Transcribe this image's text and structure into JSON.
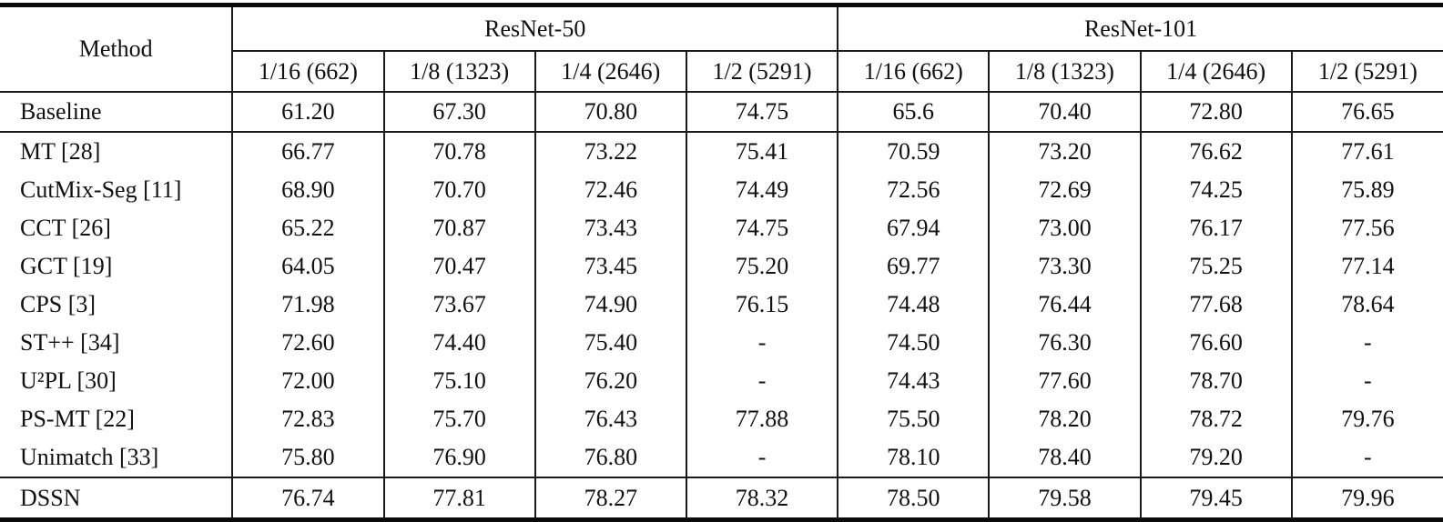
{
  "table": {
    "method_header": "Method",
    "group_headers": [
      "ResNet-50",
      "ResNet-101"
    ],
    "sub_headers": [
      "1/16 (662)",
      "1/8 (1323)",
      "1/4 (2646)",
      "1/2 (5291)",
      "1/16 (662)",
      "1/8 (1323)",
      "1/4 (2646)",
      "1/2 (5291)"
    ],
    "rows": [
      {
        "method": "Baseline",
        "section": "baseline",
        "bold": false,
        "values": [
          "61.20",
          "67.30",
          "70.80",
          "74.75",
          "65.6",
          "70.40",
          "72.80",
          "76.65"
        ]
      },
      {
        "method": "MT [28]",
        "section": "mid",
        "bold": false,
        "values": [
          "66.77",
          "70.78",
          "73.22",
          "75.41",
          "70.59",
          "73.20",
          "76.62",
          "77.61"
        ]
      },
      {
        "method": "CutMix-Seg [11]",
        "section": "mid",
        "bold": false,
        "values": [
          "68.90",
          "70.70",
          "72.46",
          "74.49",
          "72.56",
          "72.69",
          "74.25",
          "75.89"
        ]
      },
      {
        "method": "CCT [26]",
        "section": "mid",
        "bold": false,
        "values": [
          "65.22",
          "70.87",
          "73.43",
          "74.75",
          "67.94",
          "73.00",
          "76.17",
          "77.56"
        ]
      },
      {
        "method": "GCT [19]",
        "section": "mid",
        "bold": false,
        "values": [
          "64.05",
          "70.47",
          "73.45",
          "75.20",
          "69.77",
          "73.30",
          "75.25",
          "77.14"
        ]
      },
      {
        "method": "CPS [3]",
        "section": "mid",
        "bold": false,
        "values": [
          "71.98",
          "73.67",
          "74.90",
          "76.15",
          "74.48",
          "76.44",
          "77.68",
          "78.64"
        ]
      },
      {
        "method": "ST++ [34]",
        "section": "mid",
        "bold": false,
        "values": [
          "72.60",
          "74.40",
          "75.40",
          "-",
          "74.50",
          "76.30",
          "76.60",
          "-"
        ]
      },
      {
        "method": "U²PL [30]",
        "section": "mid",
        "bold": false,
        "values": [
          "72.00",
          "75.10",
          "76.20",
          "-",
          "74.43",
          "77.60",
          "78.70",
          "-"
        ]
      },
      {
        "method": "PS-MT [22]",
        "section": "mid",
        "bold": false,
        "values": [
          "72.83",
          "75.70",
          "76.43",
          "77.88",
          "75.50",
          "78.20",
          "78.72",
          "79.76"
        ]
      },
      {
        "method": "Unimatch [33]",
        "section": "mid",
        "bold": false,
        "values": [
          "75.80",
          "76.90",
          "76.80",
          "-",
          "78.10",
          "78.40",
          "79.20",
          "-"
        ]
      },
      {
        "method": "DSSN",
        "section": "final",
        "bold": true,
        "values": [
          "76.74",
          "77.81",
          "78.27",
          "78.32",
          "78.50",
          "79.58",
          "79.45",
          "79.96"
        ]
      }
    ]
  }
}
